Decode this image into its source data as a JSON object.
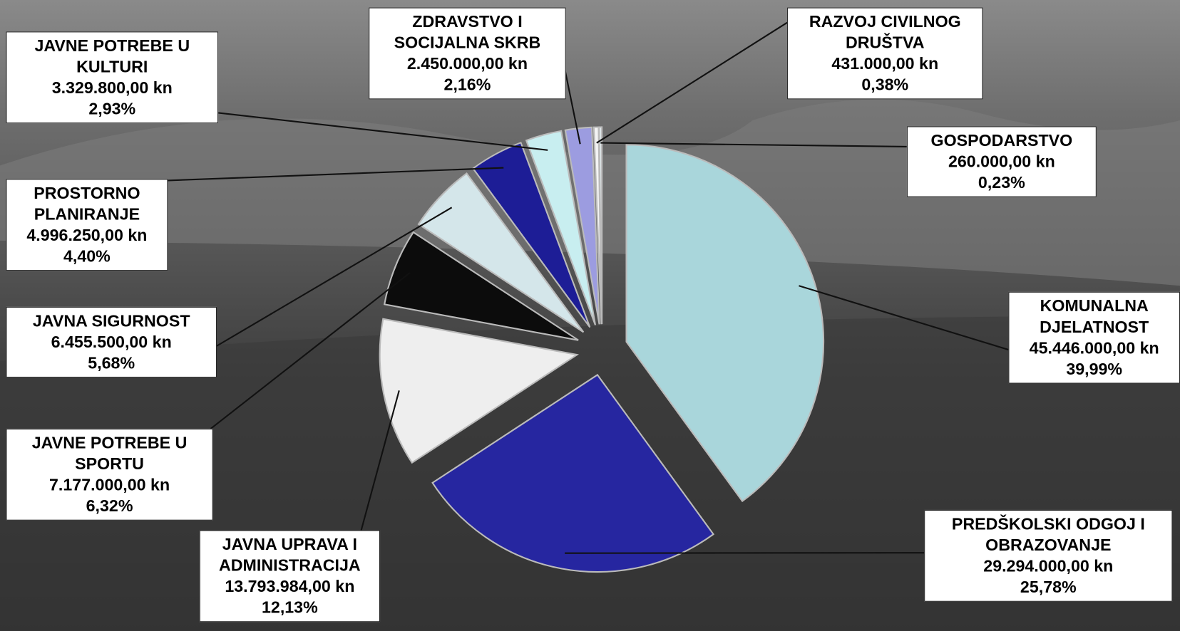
{
  "chart_data": {
    "type": "pie",
    "categories": [
      "KOMUNALNA DJELATNOST",
      "PREDŠKOLSKI ODGOJ I OBRAZOVANJE",
      "JAVNA UPRAVA I ADMINISTRACIJA",
      "JAVNE POTREBE U SPORTU",
      "JAVNA SIGURNOST",
      "PROSTORNO PLANIRANJE",
      "JAVNE POTREBE U KULTURI",
      "ZDRAVSTVO I SOCIJALNA SKRB",
      "RAZVOJ CIVILNOG DRUŠTVA",
      "GOSPODARSTVO"
    ],
    "values": [
      45446000,
      29294000,
      13793984,
      7177000,
      6455500,
      4996250,
      3329800,
      2450000,
      431000,
      260000
    ],
    "value_labels": [
      "45.446.000,00 kn",
      "29.294.000,00 kn",
      "13.793.984,00 kn",
      "7.177.000,00 kn",
      "6.455.500,00 kn",
      "4.996.250,00 kn",
      "3.329.800,00 kn",
      "2.450.000,00 kn",
      "431.000,00 kn",
      "260.000,00 kn"
    ],
    "percents": [
      39.99,
      25.78,
      12.13,
      6.32,
      5.68,
      4.4,
      2.93,
      2.16,
      0.38,
      0.23
    ],
    "percent_labels": [
      "39,99%",
      "25,78%",
      "12,13%",
      "6,32%",
      "5,68%",
      "4,40%",
      "2,93%",
      "2,16%",
      "0,38%",
      "0,23%"
    ],
    "colors": [
      "#a9d6db",
      "#2626a0",
      "#eeeeee",
      "#0c0c0c",
      "#d4e6ea",
      "#1d1d96",
      "#c8eef0",
      "#9c9ce0",
      "#f4f4f4",
      "#dfe8ea"
    ]
  }
}
